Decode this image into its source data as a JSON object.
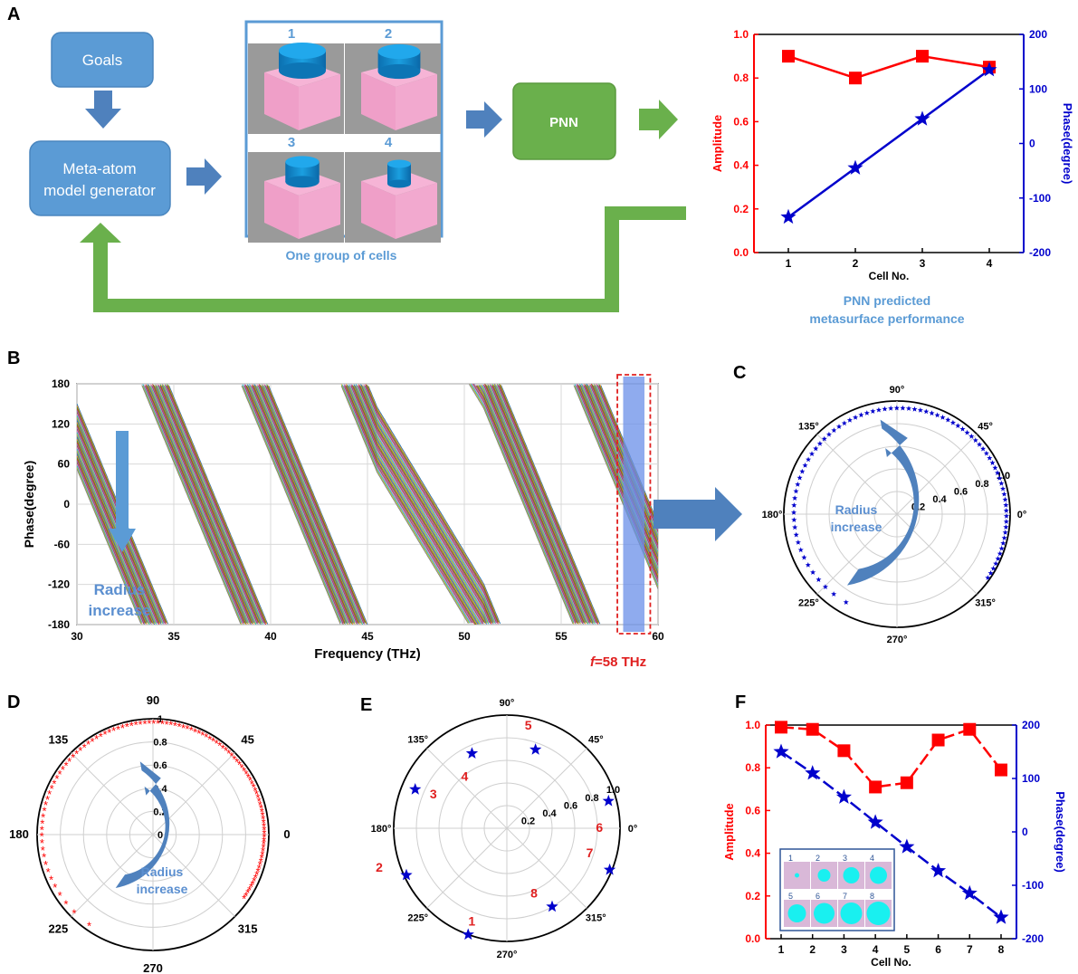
{
  "panels": {
    "A": {
      "letter": "A",
      "goals_label": "Goals",
      "generator_label_line1": "Meta-atom",
      "generator_label_line2": "model generator",
      "pnn_label": "PNN",
      "cells_caption": "One group of cells",
      "cell_numbers": [
        "1",
        "2",
        "3",
        "4"
      ],
      "cell_radii": [
        1.0,
        0.9,
        0.72,
        0.5
      ],
      "performance_caption_line1": "PNN predicted",
      "performance_caption_line2": "metasurface performance",
      "chart": {
        "xlabel": "Cell No.",
        "ylabel_left": "Amplitude",
        "ylabel_right": "Phase(degree)",
        "x_ticks": [
          "1",
          "2",
          "3",
          "4"
        ],
        "y_ticks_left": [
          "0.0",
          "0.2",
          "0.4",
          "0.6",
          "0.8",
          "1.0"
        ],
        "y_ticks_right": [
          "-200",
          "-100",
          "0",
          "100",
          "200"
        ]
      }
    },
    "B": {
      "letter": "B",
      "xlabel": "Frequency (THz)",
      "ylabel": "Phase(degree)",
      "x_ticks": [
        "30",
        "35",
        "40",
        "45",
        "50",
        "55",
        "60"
      ],
      "y_ticks": [
        "180",
        "120",
        "60",
        "0",
        "-60",
        "-120",
        "-180"
      ],
      "arrow_label_line1": "Radius",
      "arrow_label_line2": "increase",
      "freq_annotation_f": "f",
      "freq_annotation_rest": "=58 THz"
    },
    "C": {
      "letter": "C",
      "angle_labels": [
        "90°",
        "45°",
        "0°",
        "315°",
        "270°",
        "225°",
        "180°",
        "135°"
      ],
      "radial_labels": [
        "0.2",
        "0.4",
        "0.6",
        "0.8",
        "1.0"
      ],
      "arrow_label_line1": "Radius",
      "arrow_label_line2": "increase"
    },
    "D": {
      "letter": "D",
      "angle_labels": [
        "90",
        "45",
        "0",
        "315",
        "270",
        "225",
        "180",
        "135"
      ],
      "radial_labels": [
        "0",
        "0.2",
        "0.4",
        "0.6",
        "0.8",
        "1"
      ],
      "arrow_label_line1": "Radius",
      "arrow_label_line2": "increase"
    },
    "E": {
      "letter": "E",
      "angle_labels": [
        "90°",
        "45°",
        "0°",
        "315°",
        "270°",
        "225°",
        "180°",
        "135°"
      ],
      "radial_labels": [
        "0.2",
        "0.4",
        "0.6",
        "0.8",
        "1.0"
      ],
      "point_labels": [
        "1",
        "2",
        "3",
        "4",
        "5",
        "6",
        "7",
        "8"
      ]
    },
    "F": {
      "letter": "F",
      "xlabel": "Cell No.",
      "ylabel_left": "Amplitude",
      "ylabel_right": "Phase(degree)",
      "x_ticks": [
        "1",
        "2",
        "3",
        "4",
        "5",
        "6",
        "7",
        "8"
      ],
      "y_ticks_left": [
        "0.0",
        "0.2",
        "0.4",
        "0.6",
        "0.8",
        "1.0"
      ],
      "y_ticks_right": [
        "-200",
        "-100",
        "0",
        "100",
        "200"
      ],
      "inset_numbers": [
        "1",
        "2",
        "3",
        "4",
        "5",
        "6",
        "7",
        "8"
      ]
    }
  },
  "colors": {
    "amplitude": "#ff0000",
    "phase": "#0000cc",
    "box_blue": "#5b9bd5",
    "green": "#6ab04c",
    "arrow_blue": "#4f81bd",
    "annotation_red": "#e02020"
  },
  "chart_data": [
    {
      "type": "line",
      "panel": "A",
      "categories": [
        1,
        2,
        3,
        4
      ],
      "xlabel": "Cell No.",
      "series": [
        {
          "name": "Amplitude",
          "axis": "left",
          "values": [
            0.9,
            0.8,
            0.9,
            0.85
          ]
        },
        {
          "name": "Phase(degree)",
          "axis": "right",
          "values": [
            -135,
            -45,
            45,
            135
          ]
        }
      ],
      "ylim_left": [
        0,
        1.0
      ],
      "ylim_right": [
        -200,
        200
      ]
    },
    {
      "type": "line",
      "panel": "B",
      "xlabel": "Frequency (THz)",
      "ylabel": "Phase(degree)",
      "xlim": [
        30,
        60
      ],
      "ylim": [
        -180,
        180
      ],
      "description_values": {
        "slope_deg_per_thz": -65,
        "curve_count": 40,
        "marked_frequency_thz": 58
      }
    },
    {
      "type": "scatter",
      "panel": "C",
      "polar": true,
      "rlim": [
        0,
        1.0
      ],
      "series": [
        {
          "values_deg_from": 240,
          "values_deg_to": -35,
          "amplitude_from": 0.9,
          "amplitude_to": 0.98,
          "point_count": 80
        }
      ]
    },
    {
      "type": "scatter",
      "panel": "D",
      "polar": true,
      "rlim": [
        0,
        1
      ],
      "series": [
        {
          "values_deg_from": 235,
          "values_deg_to": -35,
          "amplitude": 0.96,
          "point_count": 110
        }
      ]
    },
    {
      "type": "scatter",
      "panel": "E",
      "polar": true,
      "rlim": [
        0,
        1.0
      ],
      "points": [
        {
          "label": "1",
          "angle": 250,
          "r": 1.0
        },
        {
          "label": "2",
          "angle": 205,
          "r": 0.98
        },
        {
          "label": "3",
          "angle": 157,
          "r": 0.88
        },
        {
          "label": "4",
          "angle": 115,
          "r": 0.73
        },
        {
          "label": "5",
          "angle": 70,
          "r": 0.74
        },
        {
          "label": "6",
          "angle": 15,
          "r": 0.93
        },
        {
          "label": "7",
          "angle": -22,
          "r": 0.98
        },
        {
          "label": "8",
          "angle": -60,
          "r": 0.8
        }
      ]
    },
    {
      "type": "line",
      "panel": "F",
      "categories": [
        1,
        2,
        3,
        4,
        5,
        6,
        7,
        8
      ],
      "xlabel": "Cell No.",
      "series": [
        {
          "name": "Amplitude",
          "axis": "left",
          "values": [
            0.99,
            0.98,
            0.88,
            0.71,
            0.73,
            0.93,
            0.98,
            0.79
          ]
        },
        {
          "name": "Phase(degree)",
          "axis": "right",
          "values": [
            150,
            110,
            65,
            18,
            -28,
            -73,
            -115,
            -160
          ]
        }
      ],
      "ylim_left": [
        0,
        1.0
      ],
      "ylim_right": [
        -200,
        200
      ]
    }
  ]
}
